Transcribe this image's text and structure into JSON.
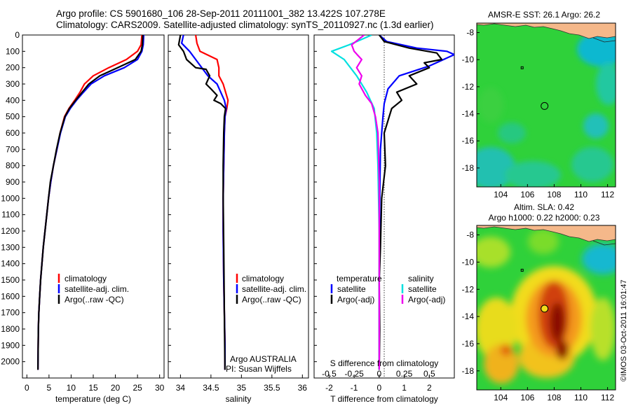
{
  "header": {
    "line1": "Argo profile: CS 5901680_106 28-Sep-2011 20111001_382 13.422S 107.278E",
    "line2": "Climatology: CARS2009. Satellite-adjusted climatology: synTS_20110927.nc (1.3d earlier)"
  },
  "chart_data": [
    {
      "type": "line",
      "id": "temperature",
      "xlabel": "temperature (deg C)",
      "ylim": [
        2100,
        0
      ],
      "xlim": [
        -1,
        31
      ],
      "xticks": [
        0,
        5,
        10,
        15,
        20,
        25,
        30
      ],
      "yticks": [
        0,
        100,
        200,
        300,
        400,
        500,
        600,
        700,
        800,
        900,
        1000,
        1100,
        1200,
        1300,
        1400,
        1500,
        1600,
        1700,
        1800,
        1900,
        2000
      ],
      "legend": [
        "climatology",
        "satellite-adj. clim.",
        "Argo(..raw -QC)"
      ],
      "series": [
        {
          "name": "climatology",
          "color": "#ff0000",
          "x": [
            26.0,
            25.8,
            25.0,
            22.5,
            18.5,
            15.0,
            13.0,
            12.0,
            10.8,
            9.5,
            8.5,
            7.5,
            6.8,
            6.0,
            5.4,
            4.9,
            4.5,
            4.1,
            3.7,
            3.4,
            3.1,
            2.9,
            2.7,
            2.6,
            2.5
          ],
          "y": [
            0,
            60,
            100,
            150,
            200,
            250,
            300,
            350,
            400,
            450,
            500,
            600,
            700,
            800,
            900,
            1000,
            1100,
            1200,
            1300,
            1400,
            1500,
            1600,
            1700,
            1800,
            2050
          ]
        },
        {
          "name": "satellite-adj. clim.",
          "color": "#0000ff",
          "x": [
            26.4,
            26.3,
            26.0,
            25.0,
            22.0,
            17.5,
            14.5,
            12.8,
            11.2,
            9.8,
            8.7,
            7.6,
            6.8,
            6.0,
            5.4,
            4.9,
            4.5,
            4.1,
            3.7,
            3.4,
            3.1,
            2.9,
            2.7,
            2.6,
            2.5
          ],
          "y": [
            0,
            60,
            100,
            150,
            200,
            250,
            300,
            350,
            400,
            450,
            500,
            600,
            700,
            800,
            900,
            1000,
            1100,
            1200,
            1300,
            1400,
            1500,
            1600,
            1700,
            1800,
            2050
          ]
        },
        {
          "name": "Argo(..raw -QC)",
          "color": "#000000",
          "x": [
            26.2,
            26.1,
            25.8,
            24.5,
            20.5,
            16.5,
            14.0,
            12.5,
            11.0,
            9.6,
            8.6,
            7.5,
            6.7,
            6.0,
            5.3,
            4.9,
            4.5,
            4.1,
            3.7,
            3.4,
            3.1,
            2.9,
            2.7,
            2.6,
            2.5
          ],
          "y": [
            0,
            60,
            100,
            150,
            200,
            250,
            300,
            350,
            400,
            450,
            500,
            600,
            700,
            800,
            900,
            1000,
            1100,
            1200,
            1300,
            1400,
            1500,
            1600,
            1700,
            1800,
            2050
          ]
        }
      ]
    },
    {
      "type": "line",
      "id": "salinity",
      "xlabel": "salinity",
      "ylim": [
        2100,
        0
      ],
      "xlim": [
        33.8,
        36.1
      ],
      "xticks": [
        34,
        34.5,
        35,
        35.5,
        36
      ],
      "legend": [
        "climatology",
        "satellite-adj. clim.",
        "Argo(..raw -QC)"
      ],
      "annotations": [
        "Argo AUSTRALIA",
        "PI: Susan Wijffels"
      ],
      "series": [
        {
          "name": "climatology",
          "color": "#ff0000",
          "x": [
            34.25,
            34.27,
            34.32,
            34.6,
            34.63,
            34.63,
            34.7,
            34.78,
            34.76,
            34.73,
            34.72,
            34.71,
            34.7,
            34.7,
            34.71,
            34.72,
            34.73,
            34.73
          ],
          "y": [
            0,
            50,
            100,
            150,
            200,
            250,
            300,
            400,
            450,
            500,
            600,
            800,
            1000,
            1200,
            1500,
            1700,
            1900,
            2050
          ]
        },
        {
          "name": "satellite-adj. clim.",
          "color": "#0000ff",
          "x": [
            34.05,
            34.02,
            34.15,
            34.25,
            34.35,
            34.45,
            34.6,
            34.72,
            34.75,
            34.73,
            34.72,
            34.71,
            34.7,
            34.7,
            34.71,
            34.72,
            34.73,
            34.73
          ],
          "y": [
            0,
            50,
            100,
            150,
            200,
            250,
            300,
            400,
            450,
            500,
            600,
            800,
            1000,
            1200,
            1500,
            1700,
            1900,
            2050
          ]
        },
        {
          "name": "Argo(..raw -QC)",
          "color": "#000000",
          "x": [
            34.0,
            33.97,
            34.05,
            34.1,
            34.25,
            34.42,
            34.48,
            34.42,
            34.5,
            34.6,
            34.55,
            34.66,
            34.74,
            34.72,
            34.71,
            34.7,
            34.7,
            34.71,
            34.72,
            34.73
          ],
          "y": [
            0,
            60,
            100,
            150,
            200,
            210,
            250,
            300,
            330,
            370,
            400,
            420,
            450,
            500,
            600,
            800,
            1000,
            1300,
            1700,
            2050
          ]
        }
      ]
    },
    {
      "type": "line",
      "id": "differences",
      "xlabel": "T difference from climatology",
      "top_axis_label": "S difference from climatology",
      "ylim": [
        2100,
        0
      ],
      "xlim": [
        -2.6,
        3.0
      ],
      "xticks": [
        -2,
        -1,
        0,
        1,
        2
      ],
      "s_ticks": [
        "-0.5",
        "-0.25",
        "0",
        "0.25",
        "0.5"
      ],
      "legend_left_title": "temperature",
      "legend_right_title": "salinity",
      "legend": [
        "satellite",
        "Argo(-adj)",
        "satellite",
        "Argo(-adj)"
      ],
      "series": [
        {
          "name": "satellite",
          "group": "temperature",
          "color": "#0000ff",
          "x": [
            0.0,
            0.3,
            1.5,
            2.7,
            3.0,
            2.0,
            0.8,
            0.35,
            0.2,
            0.15,
            0.05,
            0.02,
            0.0,
            0.0
          ],
          "y": [
            0,
            40,
            80,
            100,
            120,
            190,
            250,
            330,
            420,
            500,
            700,
            1000,
            1500,
            2050
          ]
        },
        {
          "name": "Argo(-adj)",
          "group": "temperature",
          "color": "#000000",
          "x": [
            0.0,
            0.2,
            1.2,
            2.3,
            2.5,
            1.8,
            2.0,
            1.2,
            1.5,
            0.7,
            0.9,
            0.5,
            0.4,
            0.2,
            0.25,
            0.1,
            0.05,
            0.0,
            0.02,
            0.0
          ],
          "y": [
            0,
            40,
            80,
            110,
            150,
            170,
            200,
            250,
            300,
            350,
            400,
            450,
            500,
            600,
            800,
            1000,
            1300,
            1500,
            1800,
            2050
          ]
        },
        {
          "name": "satellite",
          "group": "salinity",
          "color": "#00e0e0",
          "x": [
            -0.3,
            -1.2,
            -1.9,
            -1.4,
            -0.9,
            -0.5,
            -0.2,
            -0.1,
            -0.05,
            0.0,
            0.0
          ],
          "y": [
            0,
            60,
            100,
            150,
            250,
            350,
            450,
            600,
            800,
            1200,
            2050
          ]
        },
        {
          "name": "Argo(-adj)",
          "group": "salinity",
          "color": "#ee00ee",
          "x": [
            -0.6,
            -1.1,
            -1.0,
            -0.7,
            -0.9,
            -0.7,
            -0.8,
            -0.55,
            -0.3,
            -0.15,
            -0.05,
            0.0,
            0.0
          ],
          "y": [
            0,
            60,
            100,
            150,
            200,
            250,
            300,
            370,
            420,
            500,
            600,
            900,
            2050
          ]
        }
      ]
    },
    {
      "type": "heatmap",
      "id": "sst-map",
      "title": "AMSR-E SST: 26.1 Argo: 26.2",
      "xlim": [
        102.2,
        112.6
      ],
      "ylim": [
        -19.4,
        -7.3
      ],
      "xticks": [
        104,
        106,
        108,
        110,
        112
      ],
      "yticks": [
        -8,
        -10,
        -12,
        -14,
        -16,
        -18
      ],
      "float_position": [
        107.278,
        -13.422
      ],
      "previous_position": [
        105.6,
        -10.6
      ]
    },
    {
      "type": "heatmap",
      "id": "sla-map",
      "title_line1": "Altim. SLA: 0.42",
      "title_line2": "Argo h1000: 0.22 h2000: 0.23",
      "xlim": [
        102.2,
        112.6
      ],
      "ylim": [
        -19.4,
        -7.3
      ],
      "xticks": [
        104,
        106,
        108,
        110,
        112
      ],
      "yticks": [
        -8,
        -10,
        -12,
        -14,
        -16,
        -18
      ],
      "float_position": [
        107.278,
        -13.422
      ],
      "previous_position": [
        105.6,
        -10.6
      ]
    }
  ],
  "footer": {
    "credit": "©IMOS 03-Oct-2011 16:01:47"
  },
  "colors": {
    "land": "#f5b88a",
    "sst_green": "#2fd13a",
    "sst_blue": "#00b4d8",
    "sla_yellow": "#f2dc1a",
    "sla_orange": "#f49a1a",
    "sla_red": "#c01a0a",
    "sla_dark": "#7a0a05"
  }
}
